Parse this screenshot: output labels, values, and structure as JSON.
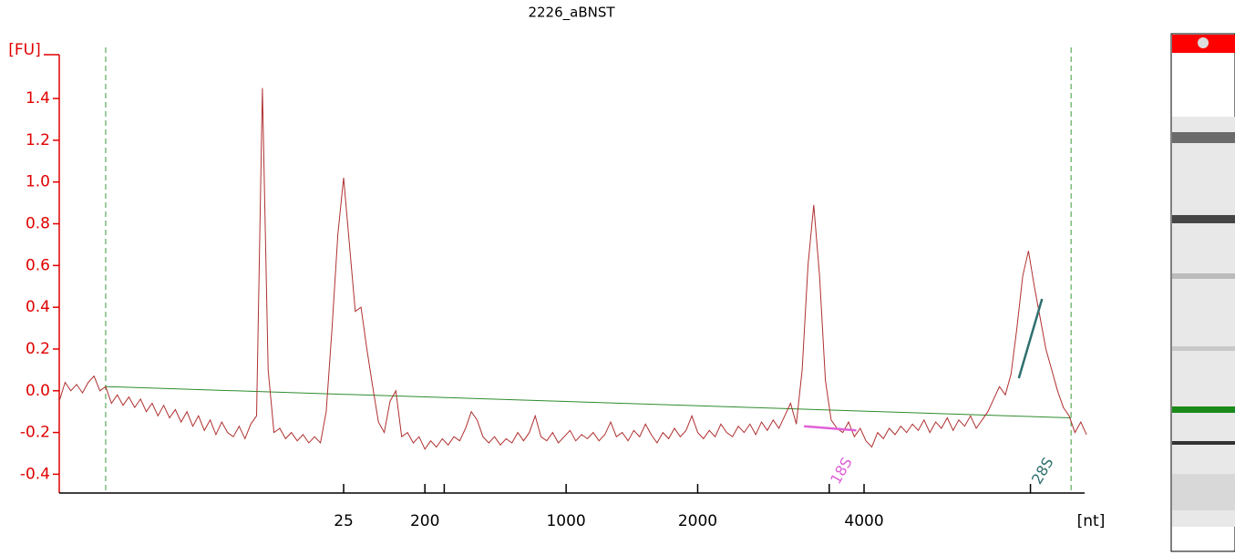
{
  "chart_data": {
    "type": "line",
    "title": "2226_aBNST",
    "ylabel": "[FU]",
    "xlabel": "[nt]",
    "xlim": [
      17,
      70
    ],
    "ylim": [
      -0.49,
      1.61
    ],
    "yticks": [
      -0.4,
      -0.2,
      {
        "value": 0,
        "label": "0.0"
      },
      0.2,
      0.4,
      0.6,
      0.8,
      {
        "value": 1,
        "label": "1.0"
      },
      1.2,
      1.4
    ],
    "xticks": [
      {
        "value": 31.7,
        "label": "25"
      },
      {
        "value": 35.9,
        "label": "200"
      },
      {
        "value": 43.2,
        "label": "1000"
      },
      {
        "value": 50.0,
        "label": "2000"
      },
      {
        "value": 58.6,
        "label": "4000"
      }
    ],
    "xminor_ticks": [
      36.9
    ],
    "axis_color": "#e00000",
    "limits": [
      19.4,
      69.3
    ],
    "limit_color": "#3a9a3a",
    "x": [
      17.0,
      17.3,
      17.6,
      17.9,
      18.2,
      18.5,
      18.8,
      19.1,
      19.4,
      19.7,
      20.0,
      20.3,
      20.6,
      20.9,
      21.2,
      21.5,
      21.8,
      22.1,
      22.4,
      22.7,
      23.0,
      23.3,
      23.6,
      23.9,
      24.2,
      24.5,
      24.8,
      25.1,
      25.4,
      25.7,
      26.0,
      26.3,
      26.6,
      26.9,
      27.2,
      27.5,
      27.8,
      28.1,
      28.4,
      28.7,
      29.0,
      29.3,
      29.6,
      29.9,
      30.2,
      30.5,
      30.8,
      31.1,
      31.4,
      31.7,
      32.0,
      32.3,
      32.6,
      32.9,
      33.2,
      33.5,
      33.8,
      34.1,
      34.4,
      34.7,
      35.0,
      35.3,
      35.6,
      35.9,
      36.2,
      36.5,
      36.8,
      37.1,
      37.4,
      37.7,
      38.0,
      38.3,
      38.6,
      38.9,
      39.2,
      39.5,
      39.8,
      40.1,
      40.4,
      40.7,
      41.0,
      41.3,
      41.6,
      41.9,
      42.2,
      42.5,
      42.8,
      43.1,
      43.4,
      43.7,
      44.0,
      44.3,
      44.6,
      44.9,
      45.2,
      45.5,
      45.8,
      46.1,
      46.4,
      46.7,
      47.0,
      47.3,
      47.6,
      47.9,
      48.2,
      48.5,
      48.8,
      49.1,
      49.4,
      49.7,
      50.0,
      50.3,
      50.6,
      50.9,
      51.2,
      51.5,
      51.8,
      52.1,
      52.4,
      52.7,
      53.0,
      53.3,
      53.6,
      53.9,
      54.2,
      54.5,
      54.8,
      55.1,
      55.4,
      55.7,
      56.0,
      56.3,
      56.6,
      56.9,
      57.2,
      57.5,
      57.8,
      58.1,
      58.4,
      58.7,
      59.0,
      59.3,
      59.6,
      59.9,
      60.2,
      60.5,
      60.8,
      61.1,
      61.4,
      61.7,
      62.0,
      62.3,
      62.6,
      62.9,
      63.2,
      63.5,
      63.8,
      64.1,
      64.4,
      64.7,
      65.0,
      65.3,
      65.6,
      65.9,
      66.2,
      66.5,
      66.8,
      67.1,
      67.4,
      67.7,
      68.0,
      68.3,
      68.6,
      68.9,
      69.2,
      69.5,
      69.8,
      70.1
    ],
    "series": [
      {
        "color": "#b03030",
        "values": [
          -0.05,
          0.04,
          0.0,
          0.03,
          -0.01,
          0.04,
          0.07,
          0.0,
          0.02,
          -0.06,
          -0.02,
          -0.07,
          -0.03,
          -0.08,
          -0.04,
          -0.1,
          -0.06,
          -0.12,
          -0.07,
          -0.13,
          -0.09,
          -0.15,
          -0.1,
          -0.17,
          -0.12,
          -0.19,
          -0.14,
          -0.21,
          -0.15,
          -0.2,
          -0.22,
          -0.17,
          -0.23,
          -0.16,
          -0.12,
          1.45,
          0.1,
          -0.2,
          -0.18,
          -0.23,
          -0.2,
          -0.24,
          -0.21,
          -0.25,
          -0.22,
          -0.25,
          -0.1,
          0.3,
          0.75,
          1.02,
          0.7,
          0.38,
          0.4,
          0.2,
          0.02,
          -0.15,
          -0.2,
          -0.05,
          0.0,
          -0.22,
          -0.2,
          -0.25,
          -0.22,
          -0.28,
          -0.24,
          -0.27,
          -0.23,
          -0.26,
          -0.22,
          -0.24,
          -0.18,
          -0.1,
          -0.14,
          -0.22,
          -0.25,
          -0.22,
          -0.26,
          -0.23,
          -0.25,
          -0.2,
          -0.24,
          -0.2,
          -0.12,
          -0.22,
          -0.24,
          -0.2,
          -0.25,
          -0.22,
          -0.19,
          -0.24,
          -0.21,
          -0.23,
          -0.2,
          -0.24,
          -0.21,
          -0.15,
          -0.22,
          -0.2,
          -0.24,
          -0.19,
          -0.22,
          -0.16,
          -0.21,
          -0.25,
          -0.2,
          -0.23,
          -0.18,
          -0.22,
          -0.19,
          -0.12,
          -0.2,
          -0.23,
          -0.19,
          -0.22,
          -0.16,
          -0.2,
          -0.22,
          -0.17,
          -0.2,
          -0.16,
          -0.21,
          -0.15,
          -0.19,
          -0.14,
          -0.18,
          -0.12,
          -0.06,
          -0.16,
          0.1,
          0.6,
          0.89,
          0.55,
          0.05,
          -0.14,
          -0.18,
          -0.2,
          -0.15,
          -0.22,
          -0.18,
          -0.24,
          -0.27,
          -0.2,
          -0.23,
          -0.18,
          -0.21,
          -0.17,
          -0.2,
          -0.16,
          -0.19,
          -0.14,
          -0.2,
          -0.15,
          -0.18,
          -0.13,
          -0.19,
          -0.14,
          -0.17,
          -0.12,
          -0.18,
          -0.14,
          -0.1,
          -0.04,
          0.02,
          -0.02,
          0.08,
          0.3,
          0.55,
          0.67,
          0.5,
          0.35,
          0.2,
          0.1,
          0.0,
          -0.08,
          -0.12,
          -0.2,
          -0.15,
          -0.21
        ]
      }
    ],
    "baseline": {
      "color": "#2e8b2e",
      "x": [
        19.4,
        69.3
      ],
      "values": [
        0.02,
        -0.13
      ]
    },
    "annotations": [
      {
        "label": "18S",
        "x": 56.8,
        "color": "#e060d8",
        "segment": {
          "x": [
            55.5,
            58.2
          ],
          "values": [
            -0.17,
            -0.19
          ]
        }
      },
      {
        "label": "28S",
        "x": 67.2,
        "color": "#2f6f6f",
        "segment": {
          "x": [
            66.6,
            67.8
          ],
          "values": [
            0.06,
            0.44
          ]
        }
      }
    ]
  }
}
